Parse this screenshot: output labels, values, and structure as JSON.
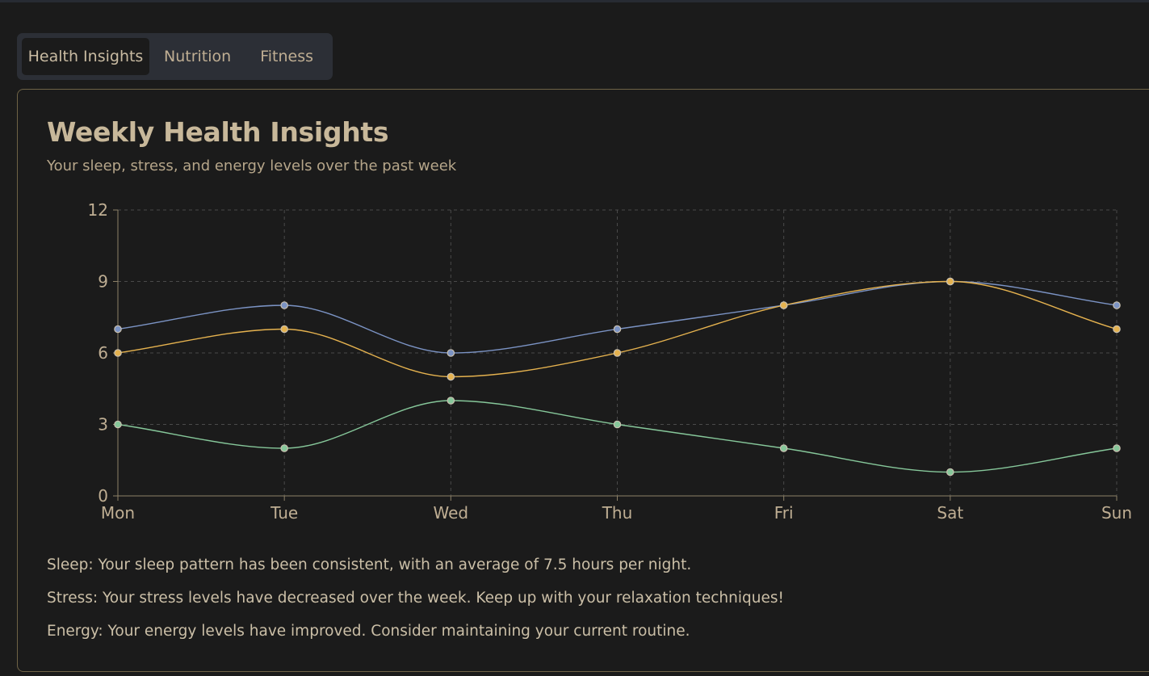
{
  "tabs": [
    {
      "label": "Health Insights",
      "active": true
    },
    {
      "label": "Nutrition",
      "active": false
    },
    {
      "label": "Fitness",
      "active": false
    }
  ],
  "card": {
    "title": "Weekly Health Insights",
    "subtitle": "Your sleep, stress, and energy levels over the past week"
  },
  "chart_data": {
    "type": "line",
    "categories": [
      "Mon",
      "Tue",
      "Wed",
      "Thu",
      "Fri",
      "Sat",
      "Sun"
    ],
    "ylim": [
      0,
      12
    ],
    "yticks": [
      "0",
      "3",
      "6",
      "9",
      "12"
    ],
    "grid": true,
    "series": [
      {
        "values": [
          7,
          8,
          6,
          7,
          8,
          9,
          8
        ],
        "color": "#7b93c4"
      },
      {
        "values": [
          6,
          7,
          5,
          6,
          8,
          9,
          7
        ],
        "color": "#e5b24f"
      },
      {
        "values": [
          3,
          2,
          4,
          3,
          2,
          1,
          2
        ],
        "color": "#86c79a"
      }
    ]
  },
  "insights": {
    "sleep": "Sleep: Your sleep pattern has been consistent, with an average of 7.5 hours per night.",
    "stress": "Stress: Your stress levels have decreased over the week. Keep up with your relaxation techniques!",
    "energy": "Energy: Your energy levels have improved. Consider maintaining your current routine."
  }
}
